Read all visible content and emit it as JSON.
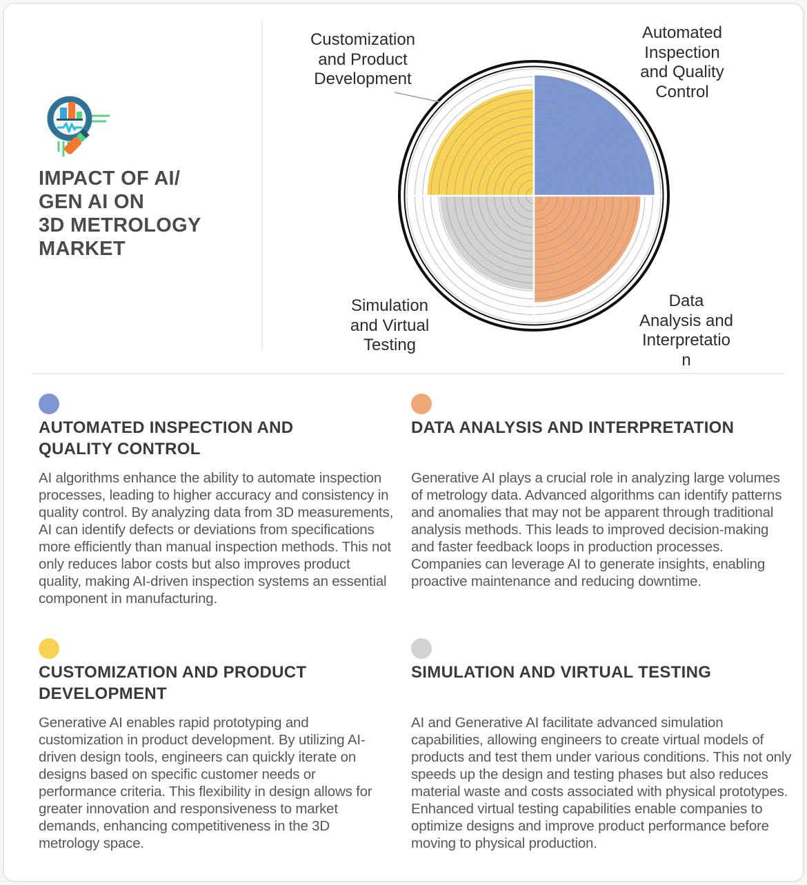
{
  "header": {
    "title_lines": [
      "IMPACT OF AI/",
      "GEN AI ON",
      "3D METROLOGY",
      "MARKET"
    ],
    "icon": "analytics-magnifier-icon"
  },
  "chart_data": {
    "type": "polar_area",
    "title": "Impact of AI/Gen AI on 3D Metrology Market",
    "categories": [
      "Automated Inspection and Quality Control",
      "Data Analysis and Interpretation",
      "Simulation and Virtual Testing",
      "Customization and Product Development"
    ],
    "values": [
      0.95,
      0.84,
      0.74,
      0.84
    ],
    "value_note": "radius as fraction of outer gridline; estimated from concentric rings",
    "colors": [
      "#7E96D2",
      "#F1A878",
      "#D2D2D3",
      "#F8D254"
    ],
    "quadrants": [
      "top-right",
      "bottom-right",
      "bottom-left",
      "top-left"
    ],
    "gridline_count": 16,
    "grid": true,
    "legend_position": "none",
    "labels": {
      "top_right": [
        "Automated",
        "Inspection",
        "and Quality",
        "Control"
      ],
      "bottom_right": [
        "Data",
        "Analysis and",
        "Interpretatio",
        "n"
      ],
      "bottom_left": [
        "Simulation",
        "and Virtual",
        "Testing"
      ],
      "top_left": [
        "Customization",
        "and Product",
        "Development"
      ]
    }
  },
  "sections": [
    {
      "id": "automated-inspection",
      "color": "#7E96D2",
      "heading": "AUTOMATED INSPECTION AND QUALITY CONTROL",
      "body": "AI algorithms enhance the ability to automate inspection processes, leading to higher accuracy and consistency in quality control. By analyzing data from 3D measurements, AI can identify defects or deviations from specifications more efficiently than manual inspection methods. This not only reduces labor costs but also improves product quality, making AI-driven inspection systems an essential component in manufacturing."
    },
    {
      "id": "data-analysis",
      "color": "#F1A878",
      "heading": "DATA ANALYSIS AND INTERPRETATION",
      "body": "Generative AI plays a crucial role in analyzing large volumes of metrology data. Advanced algorithms can identify patterns and anomalies that may not be apparent through traditional analysis methods. This leads to improved decision-making and faster feedback loops in production processes. Companies can leverage AI to generate insights, enabling proactive maintenance and reducing downtime."
    },
    {
      "id": "customization",
      "color": "#F8D254",
      "heading": "CUSTOMIZATION AND PRODUCT DEVELOPMENT",
      "body": "Generative AI enables rapid prototyping and customization in product development. By utilizing AI-driven design tools, engineers can quickly iterate on designs based on specific customer needs or performance criteria. This flexibility in design allows for greater innovation and responsiveness to market demands, enhancing competitiveness in the 3D metrology space."
    },
    {
      "id": "simulation",
      "color": "#D2D2D3",
      "heading": "SIMULATION AND VIRTUAL TESTING",
      "body": "AI and Generative AI facilitate advanced simulation capabilities, allowing engineers to create virtual models of products and test them under various conditions. This not only speeds up the design and testing phases but also reduces material waste and costs associated with physical prototypes. Enhanced virtual testing capabilities enable companies to optimize designs and improve product performance before moving to physical production."
    }
  ]
}
